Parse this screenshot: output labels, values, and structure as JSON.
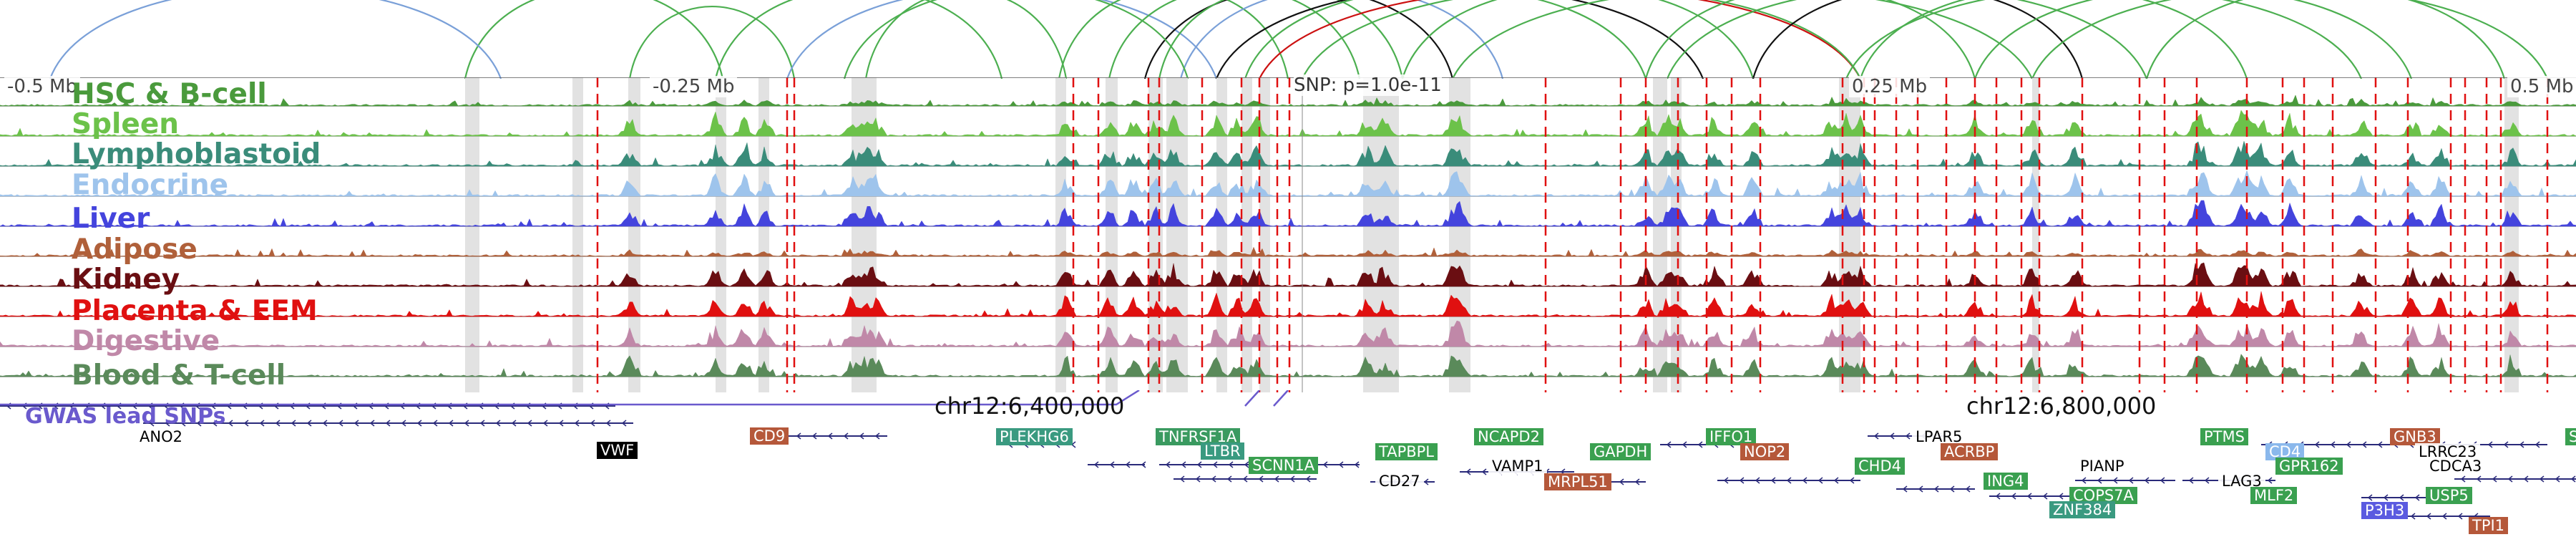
{
  "axis": {
    "ticks": [
      "-0.5 Mb",
      "-0.25 Mb",
      "0.25 Mb",
      "0.5 Mb"
    ],
    "coords": [
      "chr12:6,400,000",
      "chr12:6,800,000"
    ],
    "snp_label": "SNP: p=1.0e-11"
  },
  "tracks": [
    {
      "label": "HSC & B-cell",
      "color": "#4a9a3c"
    },
    {
      "label": "Spleen",
      "color": "#6cc24a"
    },
    {
      "label": "Lymphoblastoid",
      "color": "#3a8c7a"
    },
    {
      "label": "Endocrine",
      "color": "#9ec4ec"
    },
    {
      "label": "Liver",
      "color": "#4444dd"
    },
    {
      "label": "Adipose",
      "color": "#b0603a"
    },
    {
      "label": "Kidney",
      "color": "#6a0e12"
    },
    {
      "label": "Placenta & EEM",
      "color": "#e01010"
    },
    {
      "label": "Digestive",
      "color": "#c088a8"
    },
    {
      "label": "Blood & T-cell",
      "color": "#5a8a5a"
    }
  ],
  "gwas": {
    "label": "GWAS lead SNPs",
    "color": "#6a5acd"
  },
  "genes": [
    {
      "name": "ANO2",
      "style": "plain",
      "color": "#000000"
    },
    {
      "name": "VWF",
      "style": "boxed",
      "color": "#000000"
    },
    {
      "name": "CD9",
      "style": "boxed",
      "color": "#b5583a"
    },
    {
      "name": "PLEKHG6",
      "style": "boxed",
      "color": "#3a9a80"
    },
    {
      "name": "TNFRSF1A",
      "style": "boxed",
      "color": "#3a9a60"
    },
    {
      "name": "LTBR",
      "style": "boxed",
      "color": "#3a9a80"
    },
    {
      "name": "SCNN1A",
      "style": "boxed",
      "color": "#3aa050"
    },
    {
      "name": "TAPBPL",
      "style": "boxed",
      "color": "#3aa050"
    },
    {
      "name": "CD27",
      "style": "plain",
      "color": "#000000"
    },
    {
      "name": "VAMP1",
      "style": "plain",
      "color": "#000000"
    },
    {
      "name": "NCAPD2",
      "style": "boxed",
      "color": "#3aa050"
    },
    {
      "name": "MRPL51",
      "style": "boxed",
      "color": "#b5583a"
    },
    {
      "name": "GAPDH",
      "style": "boxed",
      "color": "#3aa050"
    },
    {
      "name": "IFFO1",
      "style": "boxed",
      "color": "#3aa050"
    },
    {
      "name": "NOP2",
      "style": "boxed",
      "color": "#b5583a"
    },
    {
      "name": "CHD4",
      "style": "boxed",
      "color": "#3aa050"
    },
    {
      "name": "LPAR5",
      "style": "plain",
      "color": "#000000"
    },
    {
      "name": "ACRBP",
      "style": "boxed",
      "color": "#b5583a"
    },
    {
      "name": "ING4",
      "style": "boxed",
      "color": "#3aa050"
    },
    {
      "name": "PIANP",
      "style": "plain",
      "color": "#000000"
    },
    {
      "name": "COPS7A",
      "style": "boxed",
      "color": "#3aa050"
    },
    {
      "name": "ZNF384",
      "style": "boxed",
      "color": "#3a9a80"
    },
    {
      "name": "PTMS",
      "style": "boxed",
      "color": "#3aa050"
    },
    {
      "name": "LAG3",
      "style": "plain",
      "color": "#000000"
    },
    {
      "name": "MLF2",
      "style": "boxed",
      "color": "#3aa050"
    },
    {
      "name": "CD4",
      "style": "boxed",
      "color": "#8ab8ec"
    },
    {
      "name": "GPR162",
      "style": "boxed",
      "color": "#3aa050"
    },
    {
      "name": "P3H3",
      "style": "boxed",
      "color": "#5a5ae0"
    },
    {
      "name": "GNB3",
      "style": "boxed",
      "color": "#b5583a"
    },
    {
      "name": "USP5",
      "style": "boxed",
      "color": "#3aa050"
    },
    {
      "name": "LRRC23",
      "style": "plain",
      "color": "#000000"
    },
    {
      "name": "CDCA3",
      "style": "plain",
      "color": "#000000"
    },
    {
      "name": "TPI1",
      "style": "boxed",
      "color": "#b5583a"
    },
    {
      "name": "S",
      "style": "boxed",
      "color": "#3aa050"
    }
  ],
  "loop_colors": {
    "common": "#4caf50",
    "alt": "#7aa0d8",
    "dark": "#111111",
    "red": "#cc1111"
  },
  "marker_color": "#e01010"
}
